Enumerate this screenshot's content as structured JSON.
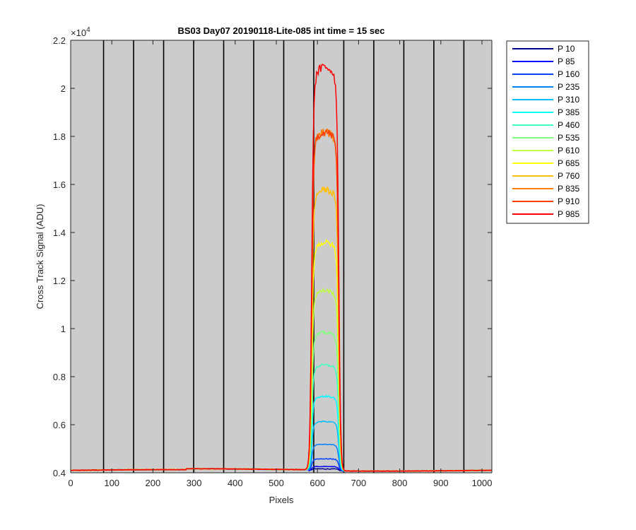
{
  "chart_data": {
    "type": "line",
    "title": "BS03 Day07 20190118-Lite-085 int time = 15 sec",
    "xlabel": "Pixels",
    "ylabel": "Cross Track Signal (ADU)",
    "xlim": [
      0,
      1024
    ],
    "ylim": [
      4000,
      22000
    ],
    "x_ticks": [
      0,
      100,
      200,
      300,
      400,
      500,
      600,
      700,
      800,
      900,
      1000
    ],
    "x_tick_labels": [
      "0",
      "100",
      "200",
      "300",
      "400",
      "500",
      "600",
      "700",
      "800",
      "900",
      "1000"
    ],
    "y_ticks": [
      4000,
      6000,
      8000,
      10000,
      12000,
      14000,
      16000,
      18000,
      20000,
      22000
    ],
    "y_tick_labels": [
      "0.4",
      "0.6",
      "0.8",
      "1",
      "1.2",
      "1.4",
      "1.6",
      "1.8",
      "2",
      "2.2"
    ],
    "y_exponent_label": "×10",
    "y_exponent_power": "4",
    "background_color": "#cccccc",
    "vertical_lines_x": [
      80,
      153,
      226,
      299,
      372,
      445,
      518,
      591,
      664,
      737,
      810,
      883,
      956
    ],
    "baseline": 4100,
    "peak_x_range": [
      586,
      652
    ],
    "legend_position": "outside-right-top",
    "series": [
      {
        "name": "P 10",
        "color": "#00008f",
        "plateau": 4180
      },
      {
        "name": "P 85",
        "color": "#0000ff",
        "plateau": 4280
      },
      {
        "name": "P 160",
        "color": "#0040ff",
        "plateau": 4600
      },
      {
        "name": "P 235",
        "color": "#0080ff",
        "plateau": 5200
      },
      {
        "name": "P 310",
        "color": "#00bfff",
        "plateau": 6150
      },
      {
        "name": "P 385",
        "color": "#00ffff",
        "plateau": 7200
      },
      {
        "name": "P 460",
        "color": "#40ffbf",
        "plateau": 8500
      },
      {
        "name": "P 535",
        "color": "#80ff80",
        "plateau": 9850
      },
      {
        "name": "P 610",
        "color": "#bfff40",
        "plateau": 11600
      },
      {
        "name": "P 685",
        "color": "#ffff00",
        "plateau": 13600
      },
      {
        "name": "P 760",
        "color": "#ffbf00",
        "plateau": 15800
      },
      {
        "name": "P 835",
        "color": "#ff8000",
        "plateau": 18200
      },
      {
        "name": "P 910",
        "color": "#ff4000",
        "plateau": 18200
      },
      {
        "name": "P 985",
        "color": "#ff0000",
        "plateau": 20900
      }
    ]
  }
}
